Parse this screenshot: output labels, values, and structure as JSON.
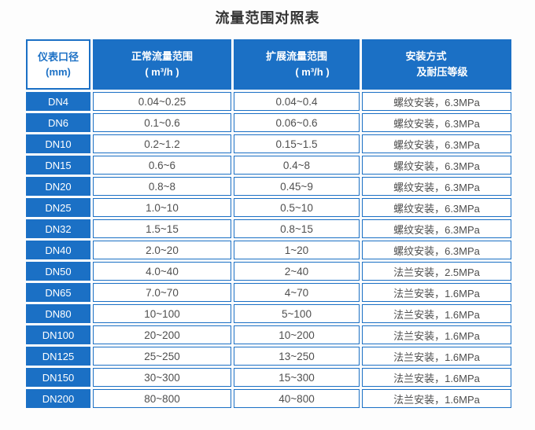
{
  "title": "流量范围对照表",
  "accent_color": "#1b70c5",
  "data_text_color": "#4f4f4f",
  "table": {
    "headers": {
      "col1": {
        "line1": "仪表口径",
        "line2": "(mm)"
      },
      "col2": {
        "line1": "正常流量范围",
        "line2": "( m³/h )"
      },
      "col3": {
        "line1": "扩展流量范围",
        "line2": "( m³/h )"
      },
      "col4": {
        "line1": "安装方式",
        "line2": "及耐压等级"
      }
    },
    "rows": [
      {
        "dn": "DN4",
        "normal": "0.04~0.25",
        "extended": "0.04~0.4",
        "install": "螺纹安装，6.3MPa"
      },
      {
        "dn": "DN6",
        "normal": "0.1~0.6",
        "extended": "0.06~0.6",
        "install": "螺纹安装，6.3MPa"
      },
      {
        "dn": "DN10",
        "normal": "0.2~1.2",
        "extended": "0.15~1.5",
        "install": "螺纹安装，6.3MPa"
      },
      {
        "dn": "DN15",
        "normal": "0.6~6",
        "extended": "0.4~8",
        "install": "螺纹安装，6.3MPa"
      },
      {
        "dn": "DN20",
        "normal": "0.8~8",
        "extended": "0.45~9",
        "install": "螺纹安装，6.3MPa"
      },
      {
        "dn": "DN25",
        "normal": "1.0~10",
        "extended": "0.5~10",
        "install": "螺纹安装，6.3MPa"
      },
      {
        "dn": "DN32",
        "normal": "1.5~15",
        "extended": "0.8~15",
        "install": "螺纹安装，6.3MPa"
      },
      {
        "dn": "DN40",
        "normal": "2.0~20",
        "extended": "1~20",
        "install": "螺纹安装，6.3MPa"
      },
      {
        "dn": "DN50",
        "normal": "4.0~40",
        "extended": "2~40",
        "install": "法兰安装，2.5MPa"
      },
      {
        "dn": "DN65",
        "normal": "7.0~70",
        "extended": "4~70",
        "install": "法兰安装，1.6MPa"
      },
      {
        "dn": "DN80",
        "normal": "10~100",
        "extended": "5~100",
        "install": "法兰安装，1.6MPa"
      },
      {
        "dn": "DN100",
        "normal": "20~200",
        "extended": "10~200",
        "install": "法兰安装，1.6MPa"
      },
      {
        "dn": "DN125",
        "normal": "25~250",
        "extended": "13~250",
        "install": "法兰安装，1.6MPa"
      },
      {
        "dn": "DN150",
        "normal": "30~300",
        "extended": "15~300",
        "install": "法兰安装，1.6MPa"
      },
      {
        "dn": "DN200",
        "normal": "80~800",
        "extended": "40~800",
        "install": "法兰安装，1.6MPa"
      }
    ]
  },
  "chart_data": {
    "type": "table",
    "title": "流量范围对照表",
    "columns": [
      "仪表口径 (mm)",
      "正常流量范围 ( m³/h )",
      "扩展流量范围 ( m³/h )",
      "安装方式及耐压等级"
    ],
    "rows": [
      [
        "DN4",
        "0.04~0.25",
        "0.04~0.4",
        "螺纹安装，6.3MPa"
      ],
      [
        "DN6",
        "0.1~0.6",
        "0.06~0.6",
        "螺纹安装，6.3MPa"
      ],
      [
        "DN10",
        "0.2~1.2",
        "0.15~1.5",
        "螺纹安装，6.3MPa"
      ],
      [
        "DN15",
        "0.6~6",
        "0.4~8",
        "螺纹安装，6.3MPa"
      ],
      [
        "DN20",
        "0.8~8",
        "0.45~9",
        "螺纹安装，6.3MPa"
      ],
      [
        "DN25",
        "1.0~10",
        "0.5~10",
        "螺纹安装，6.3MPa"
      ],
      [
        "DN32",
        "1.5~15",
        "0.8~15",
        "螺纹安装，6.3MPa"
      ],
      [
        "DN40",
        "2.0~20",
        "1~20",
        "螺纹安装，6.3MPa"
      ],
      [
        "DN50",
        "4.0~40",
        "2~40",
        "法兰安装，2.5MPa"
      ],
      [
        "DN65",
        "7.0~70",
        "4~70",
        "法兰安装，1.6MPa"
      ],
      [
        "DN80",
        "10~100",
        "5~100",
        "法兰安装，1.6MPa"
      ],
      [
        "DN100",
        "20~200",
        "10~200",
        "法兰安装，1.6MPa"
      ],
      [
        "DN125",
        "25~250",
        "13~250",
        "法兰安装，1.6MPa"
      ],
      [
        "DN150",
        "30~300",
        "15~300",
        "法兰安装，1.6MPa"
      ],
      [
        "DN200",
        "80~800",
        "40~800",
        "法兰安装，1.6MPa"
      ]
    ]
  }
}
